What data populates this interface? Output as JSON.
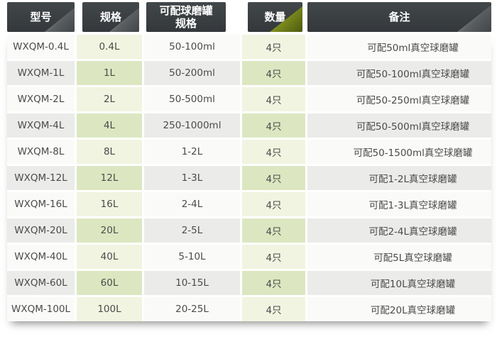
{
  "table": {
    "columns": [
      {
        "label": "型号"
      },
      {
        "label": "规格"
      },
      {
        "label": "可配球磨罐规格",
        "label_line1": "可配球磨罐",
        "label_line2": "规格"
      },
      {
        "label": "数量"
      },
      {
        "label": "备注"
      }
    ],
    "rows": [
      {
        "model": "WXQM-0.4L",
        "spec": "0.4L",
        "jar_spec": "50-100ml",
        "quantity": "4只",
        "remark": "可配50ml真空球磨罐"
      },
      {
        "model": "WXQM-1L",
        "spec": "1L",
        "jar_spec": "50-200ml",
        "quantity": "4只",
        "remark": "可配50-100ml真空球磨罐"
      },
      {
        "model": "WXQM-2L",
        "spec": "2L",
        "jar_spec": "50-500ml",
        "quantity": "4只",
        "remark": "可配50-250ml真空球磨罐"
      },
      {
        "model": "WXQM-4L",
        "spec": "4L",
        "jar_spec": "250-1000ml",
        "quantity": "4只",
        "remark": "可配50-500ml真空球磨罐"
      },
      {
        "model": "WXQM-8L",
        "spec": "8L",
        "jar_spec": "1-2L",
        "quantity": "4只",
        "remark": "可配50-1500ml真空球磨罐"
      },
      {
        "model": "WXQM-12L",
        "spec": "12L",
        "jar_spec": "1-3L",
        "quantity": "4只",
        "remark": "可配1-2L真空球磨罐"
      },
      {
        "model": "WXQM-16L",
        "spec": "16L",
        "jar_spec": "2-4L",
        "quantity": "4只",
        "remark": "可配1-3L真空球磨罐"
      },
      {
        "model": "WXQM-20L",
        "spec": "20L",
        "jar_spec": "2-5L",
        "quantity": "4只",
        "remark": "可配2-4L真空球磨罐"
      },
      {
        "model": "WXQM-40L",
        "spec": "40L",
        "jar_spec": "5-10L",
        "quantity": "4只",
        "remark": "可配5L真空球磨罐"
      },
      {
        "model": "WXQM-60L",
        "spec": "60L",
        "jar_spec": "10-15L",
        "quantity": "4只",
        "remark": "可配10L真空球磨罐"
      },
      {
        "model": "WXQM-100L",
        "spec": "100L",
        "jar_spec": "20-25L",
        "quantity": "4只",
        "remark": "可配20L真空球磨罐"
      }
    ]
  },
  "colors": {
    "header_bg": "#393d40",
    "header_text": "#ffffff",
    "fold_gray_dark": "#404547",
    "fold_gray_light": "#b7babb",
    "fold_green_dark": "#4c580e",
    "fold_green_light": "#bcca58",
    "row_light": "#fafaf8",
    "row_dark": "#ebebe9",
    "green_cell_light": "#f1f4e0",
    "green_cell_dark": "#dce7c1",
    "body_text": "#4b4b4b"
  }
}
